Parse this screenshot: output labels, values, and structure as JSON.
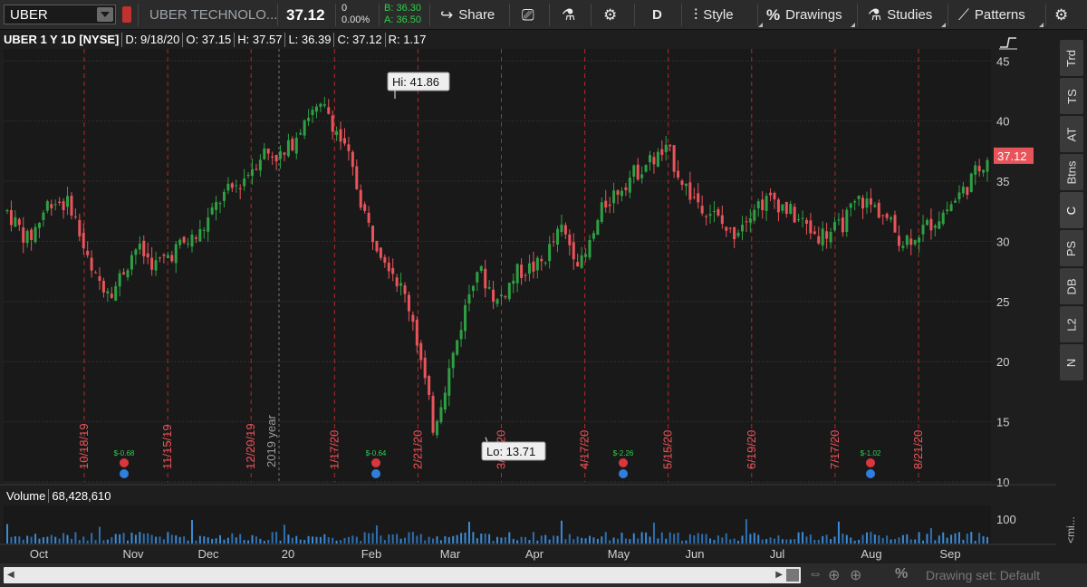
{
  "toolbar": {
    "symbol": "UBER",
    "company": "UBER TECHNOLO...",
    "last": "37.12",
    "change": "0",
    "change_pct": "0.00%",
    "bid": "B: 36.30",
    "ask": "A: 36.50",
    "share_label": "Share",
    "aggregation": "D",
    "style_label": "Style",
    "drawings_label": "Drawings",
    "studies_label": "Studies",
    "patterns_label": "Patterns"
  },
  "header": {
    "symbol_desc": "UBER 1 Y 1D [NYSE]",
    "date": "D: 9/18/20",
    "open": "O: 37.15",
    "high": "H: 37.57",
    "low": "L: 36.39",
    "close": "C: 37.12",
    "range": "R: 1.17"
  },
  "side_tabs": [
    "Trd",
    "TS",
    "AT",
    "Btns",
    "C",
    "PS",
    "DB",
    "L2",
    "N"
  ],
  "volume_header": {
    "label": "Volume",
    "value": "68,428,610"
  },
  "volume_axis_label": "100",
  "mi_label": "<mi...",
  "drawing_set": "Drawing set: Default",
  "colors": {
    "up": "#2ea043",
    "down": "#e8545a",
    "grid": "#3a3a3a",
    "event_line": "#b02a2a",
    "price_badge": "#e8545a"
  },
  "chart_data": {
    "type": "candlestick",
    "symbol": "UBER",
    "ylim": [
      10,
      46
    ],
    "yticks": [
      10,
      15,
      20,
      25,
      30,
      35,
      40,
      45
    ],
    "last_price": "37.12",
    "hi_label": "Hi: 41.86",
    "lo_label": "Lo: 13.71",
    "x_month_labels": [
      "Oct",
      "Nov",
      "Dec",
      "20",
      "Feb",
      "Mar",
      "Apr",
      "May",
      "Jun",
      "Jul",
      "Aug",
      "Sep"
    ],
    "event_dates": [
      "10/18/19",
      "11/15/19",
      "12/20/19",
      "1/17/20",
      "2/21/20",
      "3/20/20",
      "4/17/20",
      "5/15/20",
      "6/19/20",
      "7/17/20",
      "8/21/20"
    ],
    "year_marker": "2019 year",
    "earnings": [
      {
        "label": "$-0.68"
      },
      {
        "label": "$-0.64"
      },
      {
        "label": "$-2.26"
      },
      {
        "label": "$-1.02"
      }
    ],
    "trend_path": [
      32.5,
      30,
      33.5,
      33,
      27,
      26,
      29.5,
      28,
      29.5,
      30.5,
      33.5,
      35,
      37.5,
      37,
      40.5,
      41,
      37,
      31,
      28,
      24,
      14.5,
      21,
      28,
      25,
      27.5,
      28,
      31,
      28,
      33,
      35,
      36.5,
      37.5,
      34,
      32.5,
      30.5,
      33,
      33.5,
      32,
      30.5,
      31,
      33.5,
      32.5,
      30,
      31,
      32.5,
      34.5,
      37.12
    ]
  }
}
